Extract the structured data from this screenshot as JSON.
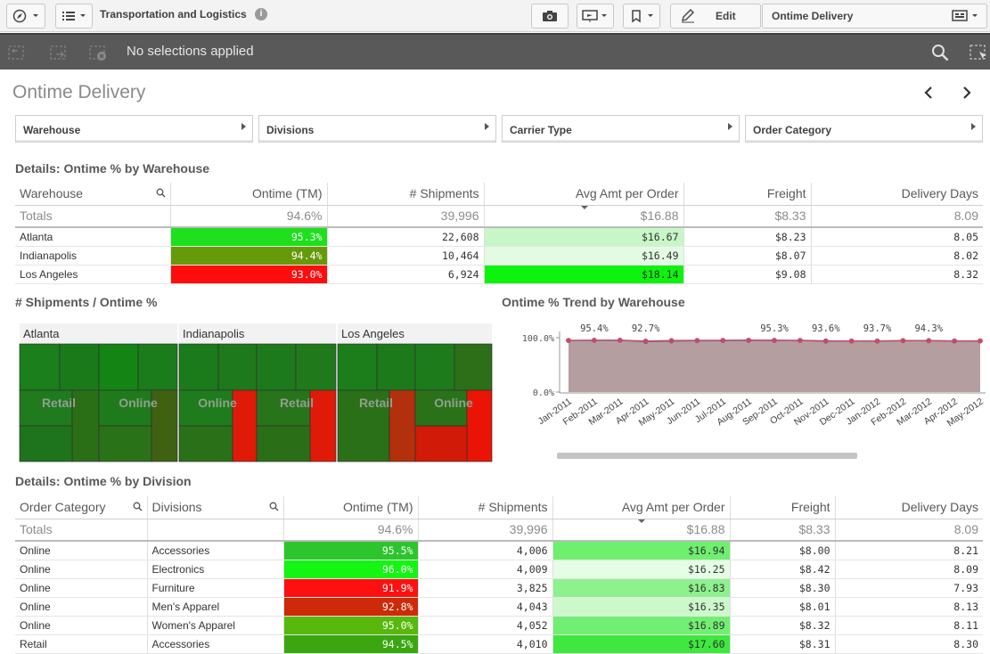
{
  "app": {
    "title": "Transportation and Logistics",
    "edit_label": "Edit",
    "sheet_selector": "Ontime Delivery"
  },
  "selections": {
    "text": "No selections applied"
  },
  "sheet": {
    "title": "Ontime Delivery"
  },
  "filters": [
    "Warehouse",
    "Divisions",
    "Carrier Type",
    "Order Category"
  ],
  "table1": {
    "title": "Details: Ontime % by Warehouse",
    "headers": [
      "Warehouse",
      "Ontime (TM)",
      "# Shipments",
      "Avg Amt per Order",
      "Freight",
      "Delivery Days"
    ],
    "totals": [
      "Totals",
      "94.6%",
      "39,996",
      "$16.88",
      "$8.33",
      "8.09"
    ],
    "rows": [
      {
        "cells": [
          "Atlanta",
          "95.3%",
          "22,608",
          "$16.67",
          "$8.23",
          "8.05"
        ],
        "ontime_color": "#1ee01e",
        "amt_color": "#c7f7c7"
      },
      {
        "cells": [
          "Indianapolis",
          "94.4%",
          "10,464",
          "$16.49",
          "$8.07",
          "8.02"
        ],
        "ontime_color": "#679a0b",
        "amt_color": "#e3fbe3"
      },
      {
        "cells": [
          "Los Angeles",
          "93.0%",
          "6,924",
          "$18.14",
          "$9.08",
          "8.32"
        ],
        "ontime_color": "#ff0d0d",
        "amt_color": "#0ef30e"
      }
    ]
  },
  "treemap": {
    "title": "# Shipments / Ontime %",
    "groups": [
      {
        "name": "Atlanta",
        "sub_labels": [
          "Retail",
          "Online"
        ]
      },
      {
        "name": "Indianapolis",
        "sub_labels": [
          "Online",
          "Retail"
        ]
      },
      {
        "name": "Los Angeles",
        "sub_labels": [
          "Retail",
          "Online"
        ]
      }
    ]
  },
  "trend": {
    "title": "Ontime % Trend by Warehouse",
    "y_ticks": [
      "100.0%",
      "0.0%"
    ],
    "data_labels": [
      "95.4%",
      "92.7%",
      "95.3%",
      "93.6%",
      "93.7%",
      "94.3%"
    ]
  },
  "chart_data": {
    "type": "area",
    "title": "Ontime % Trend by Warehouse",
    "x": [
      "Jan-2011",
      "Feb-2011",
      "Mar-2011",
      "Apr-2011",
      "May-2011",
      "Jun-2011",
      "Jul-2011",
      "Aug-2011",
      "Sep-2011",
      "Oct-2011",
      "Nov-2011",
      "Dec-2011",
      "Jan-2012",
      "Feb-2012",
      "Mar-2012",
      "Apr-2012",
      "May-2012"
    ],
    "ylim": [
      0,
      100
    ],
    "series": [
      {
        "values": [
          95.0,
          95.4,
          95.4,
          93.8,
          94.8,
          95.0,
          95.2,
          95.5,
          95.3,
          94.8,
          93.6,
          93.9,
          93.7,
          94.7,
          94.3,
          94.0,
          94.2
        ]
      },
      {
        "values": [
          94.8,
          95.0,
          95.2,
          92.7,
          93.8,
          94.4,
          94.6,
          95.0,
          94.9,
          95.1,
          94.2,
          93.8,
          94.0,
          94.4,
          94.8,
          93.9,
          94.0
        ]
      }
    ],
    "labels": [
      {
        "x": "Feb-2011",
        "text": "95.4%"
      },
      {
        "x": "Apr-2011",
        "text": "92.7%"
      },
      {
        "x": "Sep-2011",
        "text": "95.3%"
      },
      {
        "x": "Nov-2011",
        "text": "93.6%"
      },
      {
        "x": "Jan-2012",
        "text": "93.7%"
      },
      {
        "x": "Mar-2012",
        "text": "94.3%"
      }
    ],
    "grid": false
  },
  "table2": {
    "title": "Details: Ontime % by Division",
    "headers": [
      "Order Category",
      "Divisions",
      "Ontime (TM)",
      "# Shipments",
      "Avg Amt per Order",
      "Freight",
      "Delivery Days"
    ],
    "totals": [
      "Totals",
      "",
      "94.6%",
      "39,996",
      "$16.88",
      "$8.33",
      "8.09"
    ],
    "rows": [
      {
        "cells": [
          "Online",
          "Accessories",
          "95.5%",
          "4,006",
          "$16.94",
          "$8.00",
          "8.21"
        ],
        "ontime_color": "#2dc52d",
        "amt_color": "#6ef06e"
      },
      {
        "cells": [
          "Online",
          "Electronics",
          "96.0%",
          "4,009",
          "$16.25",
          "$8.42",
          "8.09"
        ],
        "ontime_color": "#14f514",
        "amt_color": "#e5fde5"
      },
      {
        "cells": [
          "Online",
          "Furniture",
          "91.9%",
          "3,825",
          "$16.83",
          "$8.30",
          "7.93"
        ],
        "ontime_color": "#ff1010",
        "amt_color": "#8df28d"
      },
      {
        "cells": [
          "Online",
          "Men's Apparel",
          "92.8%",
          "4,043",
          "$16.35",
          "$8.01",
          "8.13"
        ],
        "ontime_color": "#cc2a08",
        "amt_color": "#ccf9cc"
      },
      {
        "cells": [
          "Online",
          "Women's Apparel",
          "95.0%",
          "4,052",
          "$16.89",
          "$8.32",
          "8.11"
        ],
        "ontime_color": "#58b80c",
        "amt_color": "#72ef72"
      }
    ],
    "partial_row": {
      "cells": [
        "Retail",
        "Accessories",
        "94.5%",
        "4,010",
        "$17.60",
        "$8.31",
        "8.30"
      ],
      "ontime_color": "#3aa710",
      "amt_color": "#3ee83e"
    }
  },
  "colors": {
    "selection_bar": "#595959",
    "green": "#1ee01e",
    "red": "#ff0d0d",
    "treemap_green": "#1e7e1e"
  }
}
